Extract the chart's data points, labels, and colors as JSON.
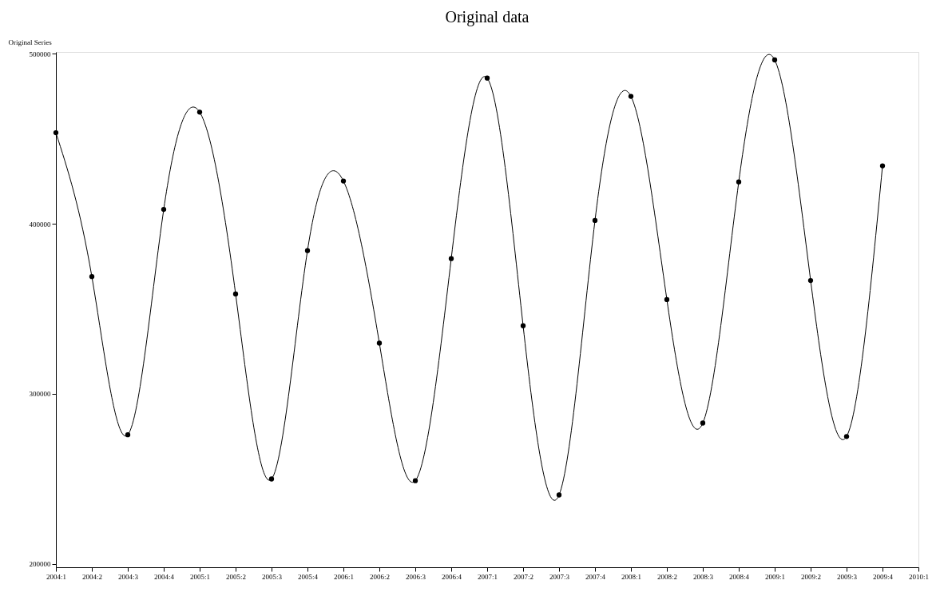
{
  "chart_data": {
    "type": "line",
    "title": "Original data",
    "ylabel": "Original Series",
    "categories": [
      "2004:1",
      "2004:2",
      "2004:3",
      "2004:4",
      "2005:1",
      "2005:2",
      "2005:3",
      "2005:4",
      "2006:1",
      "2006:2",
      "2006:3",
      "2006:4",
      "2007:1",
      "2007:2",
      "2007:3",
      "2007:4",
      "2008:1",
      "2008:2",
      "2008:3",
      "2008:4",
      "2009:1",
      "2009:2",
      "2009:3",
      "2009:4",
      "2010:1"
    ],
    "series": [
      {
        "color": "#000000",
        "values": [
          453500,
          368900,
          275900,
          408400,
          465600,
          358700,
          249900,
          384200,
          425100,
          329800,
          248900,
          379500,
          485600,
          340000,
          240500,
          401900,
          474900,
          355400,
          282800,
          424600,
          496300,
          366600,
          274900,
          434000,
          null
        ]
      }
    ],
    "ylim": [
      198000,
      501000
    ],
    "yticks": [
      200000,
      300000,
      400000,
      500000
    ],
    "grid": false,
    "marker": "circle",
    "line_style": "solid"
  }
}
